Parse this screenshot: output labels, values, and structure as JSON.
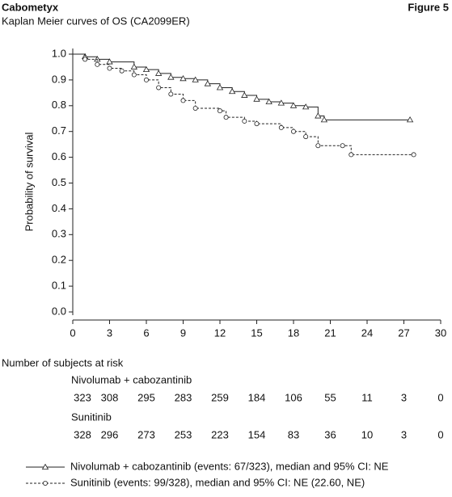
{
  "header": {
    "brand": "Cabometyx",
    "figure": "Figure 5"
  },
  "chart_data": {
    "type": "line",
    "step": true,
    "title": "Kaplan Meier curves of OS (CA2099ER)",
    "y_label": "Probability of survival",
    "xlim": [
      0,
      30
    ],
    "xticks": [
      0,
      3,
      6,
      9,
      12,
      15,
      18,
      21,
      24,
      27,
      30
    ],
    "ylim": [
      0,
      1
    ],
    "yticks": [
      {
        "value": 0,
        "label": "0.0"
      },
      0.1,
      0.2,
      0.3,
      0.4,
      0.5,
      0.6,
      0.7,
      0.8,
      0.9,
      {
        "value": 1,
        "label": "1.0"
      }
    ],
    "series": [
      {
        "name": "Nivolumab + cabozantinib (events: 67/323), median and 95% CI: NE",
        "color": "#222222",
        "dash": false,
        "marker": "triangle",
        "x": [
          0,
          1,
          2,
          3,
          5,
          6,
          7,
          8,
          9,
          10,
          11,
          12,
          13,
          14,
          15,
          16,
          17,
          18,
          19,
          20,
          20.5,
          27.5
        ],
        "values": [
          1.0,
          0.99,
          0.98,
          0.97,
          0.95,
          0.94,
          0.925,
          0.91,
          0.905,
          0.9,
          0.885,
          0.87,
          0.855,
          0.84,
          0.825,
          0.815,
          0.81,
          0.8,
          0.795,
          0.76,
          0.745,
          0.745
        ]
      },
      {
        "name": "Sunitinib (events: 99/328), median and 95% CI: NE (22.60, NE)",
        "color": "#222222",
        "dash": true,
        "marker": "circle",
        "x": [
          0,
          1,
          2,
          3,
          4,
          5,
          6,
          7,
          8,
          9,
          10,
          12,
          12.5,
          14,
          15,
          17,
          18,
          19,
          20,
          22,
          22.7,
          27.8
        ],
        "values": [
          1.0,
          0.98,
          0.96,
          0.945,
          0.935,
          0.92,
          0.9,
          0.87,
          0.845,
          0.82,
          0.79,
          0.78,
          0.755,
          0.74,
          0.73,
          0.715,
          0.7,
          0.68,
          0.645,
          0.645,
          0.61,
          0.61
        ]
      }
    ],
    "risk_table": {
      "title": "Number of subjects at risk",
      "groups": [
        {
          "name": "Nivolumab + cabozantinib",
          "values": [
            "323",
            "308",
            "295",
            "283",
            "259",
            "184",
            "106",
            "55",
            "11",
            "3",
            "0"
          ]
        },
        {
          "name": "Sunitinib",
          "values": [
            "328",
            "296",
            "273",
            "253",
            "223",
            "154",
            "83",
            "36",
            "10",
            "3",
            "0"
          ]
        }
      ]
    }
  }
}
